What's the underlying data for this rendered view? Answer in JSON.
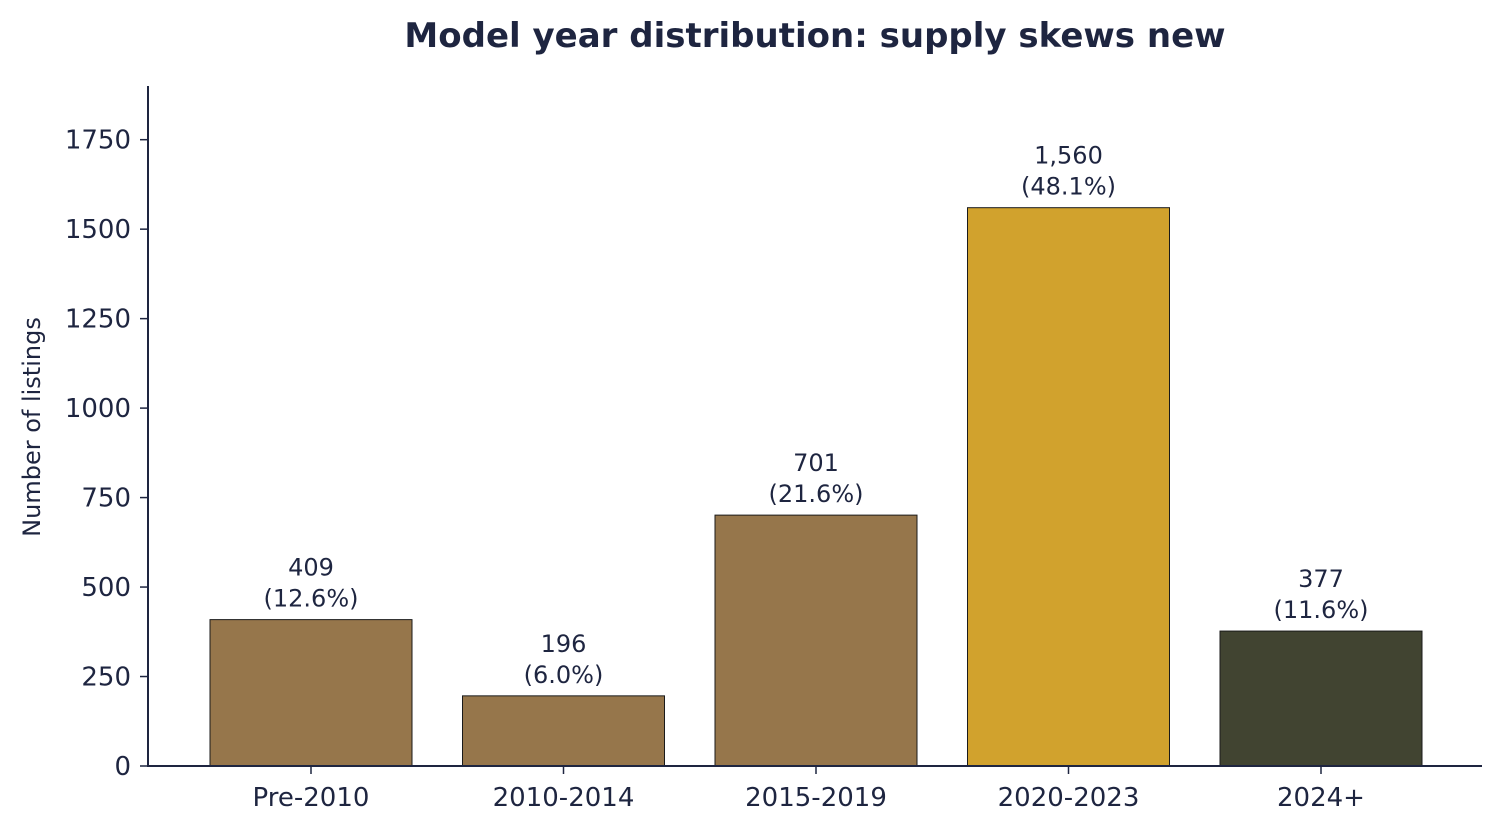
{
  "chart_data": {
    "type": "bar",
    "title": "Model year distribution: supply skews new",
    "xlabel": "",
    "ylabel": "Number of listings",
    "ylim": [
      0,
      1900
    ],
    "yticks": [
      0,
      250,
      500,
      750,
      1000,
      1250,
      1500,
      1750
    ],
    "grid": false,
    "categories": [
      "Pre-2010",
      "2010-2014",
      "2015-2019",
      "2020-2023",
      "2024+"
    ],
    "values": [
      409,
      196,
      701,
      1560,
      377
    ],
    "value_labels": [
      "409",
      "196",
      "701",
      "1,560",
      "377"
    ],
    "percent_labels": [
      "(12.6%)",
      "(6.0%)",
      "(21.6%)",
      "(48.1%)",
      "(11.6%)"
    ],
    "colors": [
      "#96764b",
      "#96764b",
      "#96764b",
      "#d1a22d",
      "#414431"
    ]
  }
}
